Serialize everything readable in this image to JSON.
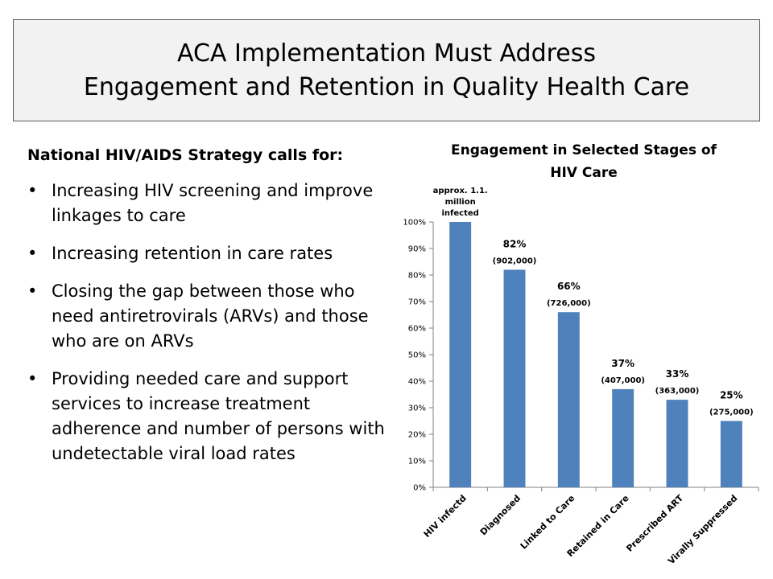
{
  "slide": {
    "title_lines": [
      "ACA Implementation Must Address",
      "Engagement and Retention in Quality Health Care"
    ]
  },
  "left": {
    "heading": "National HIV/AIDS Strategy calls for:",
    "bullets": [
      "Increasing HIV screening and improve linkages to care",
      "Increasing retention in care rates",
      "Closing the gap between those who need antiretrovirals (ARVs) and those who are on ARVs",
      "Providing needed care and support services to increase treatment adherence and number of persons with undetectable viral load rates"
    ]
  },
  "chart_data": {
    "type": "bar",
    "title_lines": [
      "Engagement in Selected Stages of",
      "HIV Care"
    ],
    "categories": [
      "HIV infectd",
      "Diagnosed",
      "Linked to Care",
      "Retained in Care",
      "Prescribed ART",
      "Virally Suppressed"
    ],
    "values": [
      100,
      82,
      66,
      37,
      33,
      25
    ],
    "data_labels": [
      [
        "approx. 1.1.",
        "million",
        "infected"
      ],
      [
        "82%",
        "(902,000)"
      ],
      [
        "66%",
        "(726,000)"
      ],
      [
        "37%",
        "(407,000)"
      ],
      [
        "33%",
        "(363,000)"
      ],
      [
        "25%",
        "(275,000)"
      ]
    ],
    "yticks": [
      "0%",
      "10%",
      "20%",
      "30%",
      "40%",
      "50%",
      "60%",
      "70%",
      "80%",
      "90%",
      "100%"
    ],
    "ylim": [
      0,
      100
    ],
    "bar_color": "#4f81bd",
    "grid": false,
    "legend": "none"
  }
}
